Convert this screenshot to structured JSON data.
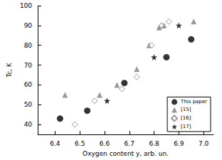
{
  "chart_data": {
    "type": "scatter",
    "x_label": "Oxygen content y, arb. un.",
    "y_label": "Tc, K",
    "xlim": [
      6.33,
      7.04
    ],
    "xticks": [
      6.4,
      6.5,
      6.6,
      6.7,
      6.8,
      6.9,
      {
        "value": 7.0,
        "label": "7.0"
      }
    ],
    "ylim": [
      35,
      100
    ],
    "yticks": [
      40,
      50,
      60,
      70,
      80,
      90,
      100
    ],
    "grid": false,
    "legend": "lower right",
    "series": [
      {
        "name": "This paper",
        "color": "#000000",
        "marker": "circle",
        "x": [
          6.42,
          6.53,
          6.68,
          6.85,
          6.95
        ],
        "values": [
          43,
          47,
          61,
          74,
          83
        ]
      },
      {
        "name": "[15]",
        "color": "#808080",
        "marker": "triangle",
        "x": [
          6.44,
          6.58,
          6.65,
          6.73,
          6.78,
          6.82,
          6.83,
          6.84,
          6.96
        ],
        "values": [
          55,
          55,
          60,
          68,
          80,
          89,
          90,
          90,
          92
        ]
      },
      {
        "name": "[16]",
        "color": "#808080",
        "marker": "open-diamond",
        "x": [
          6.48,
          6.56,
          6.67,
          6.73,
          6.79,
          6.83,
          6.86
        ],
        "values": [
          40,
          52,
          58,
          64,
          80,
          90,
          92
        ]
      },
      {
        "name": "[17]",
        "color": "#000000",
        "marker": "star",
        "x": [
          6.61,
          6.8,
          6.9
        ],
        "values": [
          52,
          74,
          90
        ]
      }
    ]
  }
}
